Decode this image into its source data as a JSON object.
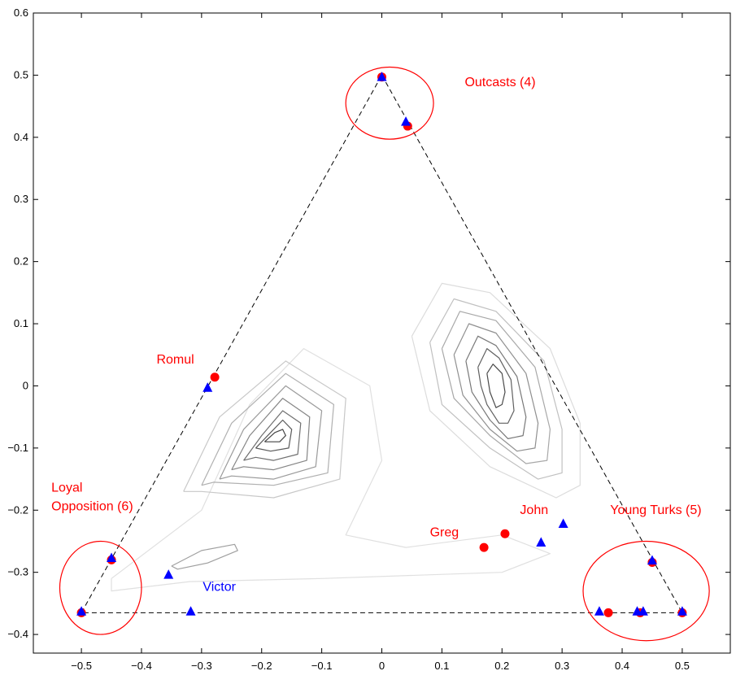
{
  "chart_data": {
    "type": "scatter",
    "title": "",
    "xlabel": "",
    "ylabel": "",
    "xlim": [
      -0.58,
      0.58
    ],
    "ylim": [
      -0.43,
      0.6
    ],
    "xticks": [
      -0.5,
      -0.4,
      -0.3,
      -0.2,
      -0.1,
      0,
      0.1,
      0.2,
      0.3,
      0.4,
      0.5
    ],
    "xtick_labels": [
      "−0.5",
      "−0.4",
      "−0.3",
      "−0.2",
      "−0.1",
      "0",
      "0.1",
      "0.2",
      "0.3",
      "0.4",
      "0.5"
    ],
    "yticks": [
      0.6,
      0.5,
      0.4,
      0.3,
      0.2,
      0.1,
      0,
      -0.1,
      -0.2,
      -0.3,
      -0.4
    ],
    "ytick_labels": [
      "0.6",
      "0.5",
      "0.4",
      "0.3",
      "0.2",
      "0.1",
      "0",
      "−0.1",
      "−0.2",
      "−0.3",
      "−0.4"
    ],
    "grid": false,
    "simplex_triangle": [
      [
        0,
        0.5
      ],
      [
        0.5,
        -0.365
      ],
      [
        -0.5,
        -0.365
      ]
    ],
    "series": [
      {
        "marker": "circle",
        "color": "#ff0000",
        "points": [
          [
            0,
            0.497
          ],
          [
            0.043,
            0.418
          ],
          [
            -0.278,
            0.014
          ],
          [
            -0.45,
            -0.28
          ],
          [
            -0.5,
            -0.365
          ],
          [
            0.17,
            -0.26
          ],
          [
            0.205,
            -0.238
          ],
          [
            0.377,
            -0.365
          ],
          [
            0.43,
            -0.365
          ],
          [
            0.45,
            -0.284
          ],
          [
            0.5,
            -0.365
          ]
        ]
      },
      {
        "marker": "triangle",
        "color": "#0000ff",
        "points": [
          [
            0,
            0.497
          ],
          [
            0.04,
            0.425
          ],
          [
            -0.29,
            -0.003
          ],
          [
            -0.45,
            -0.277
          ],
          [
            -0.5,
            -0.363
          ],
          [
            -0.355,
            -0.304
          ],
          [
            -0.318,
            -0.363
          ],
          [
            0.265,
            -0.252
          ],
          [
            0.302,
            -0.222
          ],
          [
            0.362,
            -0.363
          ],
          [
            0.425,
            -0.363
          ],
          [
            0.435,
            -0.363
          ],
          [
            0.45,
            -0.281
          ],
          [
            0.5,
            -0.363
          ]
        ]
      }
    ],
    "annotations": [
      {
        "text": "Outcasts (4)",
        "x": 0.138,
        "y": 0.482,
        "color": "#ff0000"
      },
      {
        "text": "Romul",
        "x": -0.375,
        "y": 0.036,
        "color": "#ff0000"
      },
      {
        "text": "Loyal",
        "x": -0.55,
        "y": -0.17,
        "color": "#ff0000"
      },
      {
        "text": "Opposition (6)",
        "x": -0.55,
        "y": -0.2,
        "color": "#ff0000"
      },
      {
        "text": "Greg",
        "x": 0.08,
        "y": -0.242,
        "color": "#ff0000"
      },
      {
        "text": "John",
        "x": 0.23,
        "y": -0.206,
        "color": "#ff0000"
      },
      {
        "text": "Young Turks (5)",
        "x": 0.38,
        "y": -0.206,
        "color": "#ff0000"
      },
      {
        "text": "Victor",
        "x": -0.298,
        "y": -0.33,
        "color": "#0000ff"
      }
    ],
    "cluster_circles": [
      {
        "cx": 0.013,
        "cy": 0.455,
        "rx": 0.073,
        "ry": 0.058
      },
      {
        "cx": -0.468,
        "cy": -0.325,
        "rx": 0.068,
        "ry": 0.075
      },
      {
        "cx": 0.44,
        "cy": -0.33,
        "rx": 0.105,
        "ry": 0.08
      }
    ],
    "contours": [
      {
        "color": "#e0e0e0",
        "points": [
          [
            -0.45,
            -0.31
          ],
          [
            -0.3,
            -0.2
          ],
          [
            -0.22,
            -0.03
          ],
          [
            -0.13,
            0.06
          ],
          [
            -0.02,
            0.0
          ],
          [
            0.0,
            -0.12
          ],
          [
            -0.06,
            -0.24
          ],
          [
            0.04,
            -0.26
          ],
          [
            0.2,
            -0.24
          ],
          [
            0.28,
            -0.27
          ],
          [
            0.2,
            -0.3
          ],
          [
            -0.1,
            -0.31
          ],
          [
            -0.32,
            -0.315
          ],
          [
            -0.45,
            -0.33
          ],
          [
            -0.45,
            -0.31
          ]
        ]
      },
      {
        "color": "#c8c8c8",
        "points": [
          [
            -0.33,
            -0.17
          ],
          [
            -0.27,
            -0.05
          ],
          [
            -0.16,
            0.04
          ],
          [
            -0.06,
            -0.02
          ],
          [
            -0.07,
            -0.15
          ],
          [
            -0.18,
            -0.18
          ],
          [
            -0.3,
            -0.17
          ],
          [
            -0.33,
            -0.17
          ]
        ]
      },
      {
        "color": "#b0b0b0",
        "points": [
          [
            -0.3,
            -0.16
          ],
          [
            -0.25,
            -0.06
          ],
          [
            -0.16,
            0.02
          ],
          [
            -0.08,
            -0.03
          ],
          [
            -0.09,
            -0.14
          ],
          [
            -0.18,
            -0.16
          ],
          [
            -0.28,
            -0.155
          ],
          [
            -0.3,
            -0.16
          ]
        ]
      },
      {
        "color": "#9a9a9a",
        "points": [
          [
            -0.27,
            -0.15
          ],
          [
            -0.23,
            -0.07
          ],
          [
            -0.16,
            0.0
          ],
          [
            -0.1,
            -0.04
          ],
          [
            -0.11,
            -0.13
          ],
          [
            -0.18,
            -0.15
          ],
          [
            -0.25,
            -0.145
          ],
          [
            -0.27,
            -0.15
          ]
        ]
      },
      {
        "color": "#858585",
        "points": [
          [
            -0.25,
            -0.135
          ],
          [
            -0.22,
            -0.08
          ],
          [
            -0.165,
            -0.02
          ],
          [
            -0.12,
            -0.05
          ],
          [
            -0.125,
            -0.12
          ],
          [
            -0.18,
            -0.135
          ],
          [
            -0.23,
            -0.13
          ],
          [
            -0.25,
            -0.135
          ]
        ]
      },
      {
        "color": "#6f6f6f",
        "points": [
          [
            -0.23,
            -0.12
          ],
          [
            -0.2,
            -0.08
          ],
          [
            -0.165,
            -0.04
          ],
          [
            -0.135,
            -0.06
          ],
          [
            -0.14,
            -0.11
          ],
          [
            -0.18,
            -0.12
          ],
          [
            -0.21,
            -0.115
          ],
          [
            -0.23,
            -0.12
          ]
        ]
      },
      {
        "color": "#5a5a5a",
        "points": [
          [
            -0.21,
            -0.1
          ],
          [
            -0.185,
            -0.075
          ],
          [
            -0.165,
            -0.055
          ],
          [
            -0.15,
            -0.07
          ],
          [
            -0.155,
            -0.1
          ],
          [
            -0.185,
            -0.105
          ],
          [
            -0.21,
            -0.1
          ]
        ]
      },
      {
        "color": "#444444",
        "points": [
          [
            -0.195,
            -0.09
          ],
          [
            -0.178,
            -0.075
          ],
          [
            -0.165,
            -0.07
          ],
          [
            -0.16,
            -0.08
          ],
          [
            -0.17,
            -0.09
          ],
          [
            -0.195,
            -0.09
          ]
        ]
      },
      {
        "color": "#dcdcdc",
        "points": [
          [
            0.05,
            0.08
          ],
          [
            0.1,
            0.165
          ],
          [
            0.18,
            0.15
          ],
          [
            0.28,
            0.06
          ],
          [
            0.33,
            -0.06
          ],
          [
            0.33,
            -0.16
          ],
          [
            0.29,
            -0.18
          ],
          [
            0.18,
            -0.13
          ],
          [
            0.08,
            -0.04
          ],
          [
            0.05,
            0.08
          ]
        ]
      },
      {
        "color": "#c0c0c0",
        "points": [
          [
            0.08,
            0.07
          ],
          [
            0.12,
            0.14
          ],
          [
            0.19,
            0.12
          ],
          [
            0.27,
            0.04
          ],
          [
            0.3,
            -0.07
          ],
          [
            0.3,
            -0.14
          ],
          [
            0.26,
            -0.15
          ],
          [
            0.18,
            -0.1
          ],
          [
            0.1,
            -0.03
          ],
          [
            0.08,
            0.07
          ]
        ]
      },
      {
        "color": "#a8a8a8",
        "points": [
          [
            0.1,
            0.06
          ],
          [
            0.13,
            0.12
          ],
          [
            0.19,
            0.105
          ],
          [
            0.255,
            0.03
          ],
          [
            0.28,
            -0.07
          ],
          [
            0.275,
            -0.12
          ],
          [
            0.24,
            -0.125
          ],
          [
            0.18,
            -0.08
          ],
          [
            0.12,
            -0.02
          ],
          [
            0.1,
            0.06
          ]
        ]
      },
      {
        "color": "#909090",
        "points": [
          [
            0.12,
            0.05
          ],
          [
            0.145,
            0.1
          ],
          [
            0.19,
            0.085
          ],
          [
            0.24,
            0.02
          ],
          [
            0.26,
            -0.06
          ],
          [
            0.255,
            -0.1
          ],
          [
            0.225,
            -0.105
          ],
          [
            0.18,
            -0.07
          ],
          [
            0.135,
            -0.015
          ],
          [
            0.12,
            0.05
          ]
        ]
      },
      {
        "color": "#787878",
        "points": [
          [
            0.14,
            0.04
          ],
          [
            0.16,
            0.08
          ],
          [
            0.19,
            0.065
          ],
          [
            0.225,
            0.015
          ],
          [
            0.24,
            -0.05
          ],
          [
            0.235,
            -0.08
          ],
          [
            0.21,
            -0.085
          ],
          [
            0.18,
            -0.055
          ],
          [
            0.15,
            -0.01
          ],
          [
            0.14,
            0.04
          ]
        ]
      },
      {
        "color": "#606060",
        "points": [
          [
            0.16,
            0.03
          ],
          [
            0.175,
            0.06
          ],
          [
            0.195,
            0.045
          ],
          [
            0.215,
            0.01
          ],
          [
            0.22,
            -0.04
          ],
          [
            0.21,
            -0.06
          ],
          [
            0.195,
            -0.06
          ],
          [
            0.175,
            -0.03
          ],
          [
            0.165,
            0.0
          ],
          [
            0.16,
            0.03
          ]
        ]
      },
      {
        "color": "#4a4a4a",
        "points": [
          [
            0.175,
            0.02
          ],
          [
            0.185,
            0.035
          ],
          [
            0.2,
            0.02
          ],
          [
            0.205,
            -0.01
          ],
          [
            0.2,
            -0.03
          ],
          [
            0.19,
            -0.035
          ],
          [
            0.18,
            -0.01
          ],
          [
            0.175,
            0.02
          ]
        ]
      },
      {
        "color": "#a0a0a0",
        "points": [
          [
            -0.35,
            -0.29
          ],
          [
            -0.3,
            -0.265
          ],
          [
            -0.245,
            -0.255
          ],
          [
            -0.24,
            -0.265
          ],
          [
            -0.29,
            -0.285
          ],
          [
            -0.34,
            -0.295
          ],
          [
            -0.35,
            -0.29
          ]
        ]
      }
    ]
  }
}
